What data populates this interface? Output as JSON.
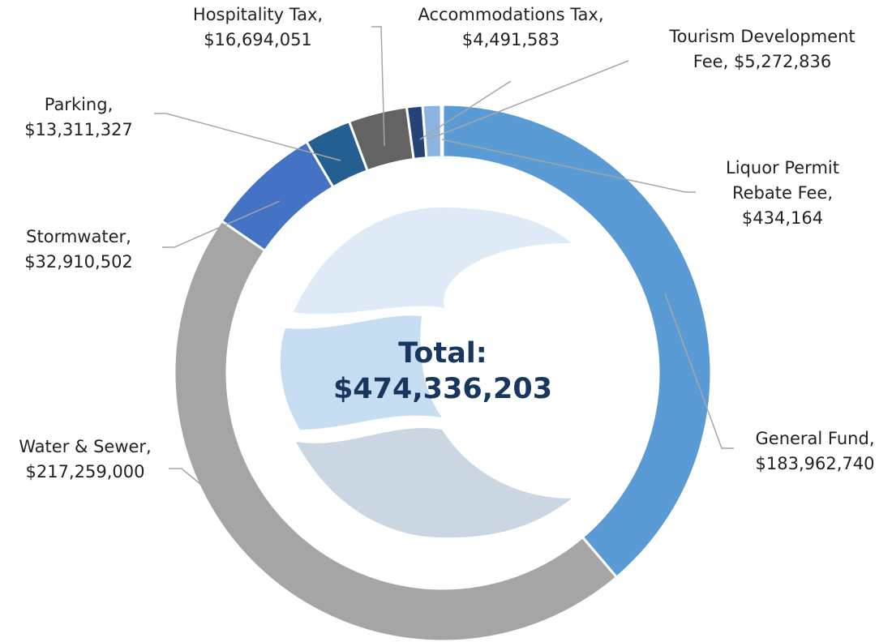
{
  "chart_data": {
    "type": "donut",
    "categories": [
      "General Fund,",
      "Water & Sewer,",
      "Stormwater,",
      "Parking,",
      "Hospitality Tax,",
      "Accommodations Tax,",
      "Tourism Development Fee,",
      "Liquor Permit Rebate Fee,"
    ],
    "values": [
      183962740,
      217259000,
      32910502,
      13311327,
      16694051,
      4491583,
      5272836,
      434164
    ],
    "value_labels": [
      "$183,962,740",
      "$217,259,000",
      "$32,910,502",
      "$13,311,327",
      "$16,694,051",
      "$4,491,583",
      "$5,272,836",
      "$434,164"
    ],
    "colors": [
      "#5b9bd5",
      "#a5a5a5",
      "#4472c4",
      "#255e91",
      "#636363",
      "#264478",
      "#8cb4e2",
      "#9dc3e6"
    ],
    "center_label": "Total:",
    "center_value": "$474,336,203"
  }
}
